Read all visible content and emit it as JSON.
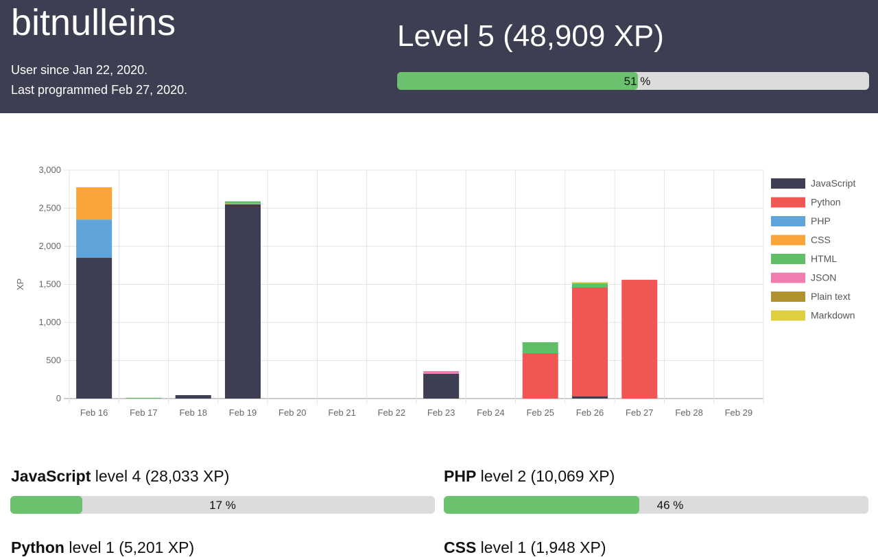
{
  "user": {
    "name": "bitnulleins",
    "since": "User since Jan 22, 2020.",
    "last": "Last programmed Feb 27, 2020."
  },
  "overall": {
    "level": "Level 5 (48,909 XP)",
    "progress": 51,
    "progress_label": "51 %"
  },
  "colors": {
    "header": "#3d3e51",
    "bar_fill": "#6cc16e",
    "bar_bg": "#dcdcdc"
  },
  "chart_data": {
    "type": "bar",
    "stacked": true,
    "ylabel": "XP",
    "ylim": [
      0,
      3000
    ],
    "yticks": [
      "0",
      "500",
      "1,000",
      "1,500",
      "2,000",
      "2,500",
      "3,000"
    ],
    "grid": true,
    "legend": "right",
    "categories": [
      "Feb 16",
      "Feb 17",
      "Feb 18",
      "Feb 19",
      "Feb 20",
      "Feb 21",
      "Feb 22",
      "Feb 23",
      "Feb 24",
      "Feb 25",
      "Feb 26",
      "Feb 27",
      "Feb 28",
      "Feb 29"
    ],
    "series": [
      {
        "name": "JavaScript",
        "color": "#3d3e51",
        "values": [
          1850,
          0,
          45,
          2550,
          0,
          0,
          0,
          325,
          0,
          0,
          30,
          0,
          0,
          0
        ]
      },
      {
        "name": "Python",
        "color": "#f05754",
        "values": [
          0,
          0,
          0,
          0,
          0,
          0,
          0,
          0,
          0,
          595,
          1430,
          1560,
          0,
          0
        ]
      },
      {
        "name": "PHP",
        "color": "#5fa5dc",
        "values": [
          500,
          0,
          0,
          0,
          0,
          0,
          0,
          0,
          0,
          0,
          0,
          0,
          0,
          0
        ]
      },
      {
        "name": "CSS",
        "color": "#fba43a",
        "values": [
          425,
          0,
          0,
          10,
          0,
          0,
          0,
          0,
          0,
          0,
          0,
          0,
          0,
          0
        ]
      },
      {
        "name": "HTML",
        "color": "#60bd68",
        "values": [
          0,
          10,
          0,
          30,
          0,
          0,
          0,
          0,
          0,
          145,
          55,
          0,
          0,
          0
        ]
      },
      {
        "name": "JSON",
        "color": "#f17cb0",
        "values": [
          0,
          0,
          0,
          0,
          0,
          0,
          0,
          35,
          0,
          0,
          0,
          0,
          0,
          0
        ]
      },
      {
        "name": "Plain text",
        "color": "#b2912f",
        "values": [
          0,
          0,
          0,
          0,
          0,
          0,
          0,
          0,
          0,
          0,
          0,
          0,
          0,
          0
        ]
      },
      {
        "name": "Markdown",
        "color": "#decf3f",
        "values": [
          0,
          0,
          0,
          0,
          0,
          0,
          0,
          0,
          0,
          0,
          15,
          0,
          0,
          0
        ]
      }
    ]
  },
  "skills": [
    {
      "lang": "JavaScript",
      "rest": " level 4 (28,033 XP)",
      "progress": 17,
      "label": "17 %"
    },
    {
      "lang": "PHP",
      "rest": " level 2 (10,069 XP)",
      "progress": 46,
      "label": "46 %"
    },
    {
      "lang": "Python",
      "rest": " level 1 (5,201 XP)"
    },
    {
      "lang": "CSS",
      "rest": " level 1 (1,948 XP)"
    }
  ]
}
